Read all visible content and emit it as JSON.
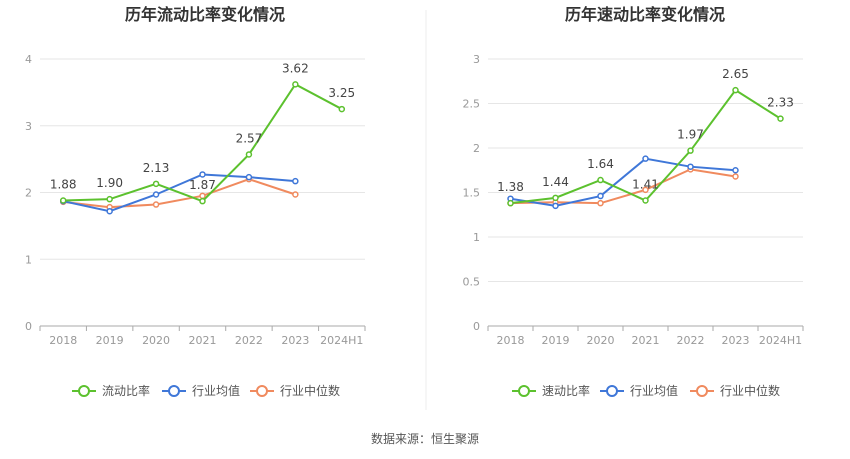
{
  "colors": {
    "series1": "#5cc12e",
    "series2": "#3f77d8",
    "series3": "#f08a5e"
  },
  "source_text": "数据来源：恒生聚源",
  "chart_data": [
    {
      "type": "line",
      "title": "历年流动比率变化情况",
      "categories": [
        "2018",
        "2019",
        "2020",
        "2021",
        "2022",
        "2023",
        "2024H1"
      ],
      "ylim": [
        0,
        4
      ],
      "yticks": [
        "0",
        "1",
        "2",
        "3",
        "4"
      ],
      "ytick_values": [
        0,
        1,
        2,
        3,
        4
      ],
      "grid": true,
      "legend_position": "bottom",
      "series": [
        {
          "name": "流动比率",
          "values": [
            1.88,
            1.9,
            2.13,
            1.87,
            2.57,
            3.62,
            3.25
          ],
          "labels": [
            "1.88",
            "1.90",
            "2.13",
            "1.87",
            "2.57",
            "3.62",
            "3.25"
          ]
        },
        {
          "name": "行业均值",
          "values": [
            1.87,
            1.72,
            1.97,
            2.27,
            2.23,
            2.17,
            null
          ]
        },
        {
          "name": "行业中位数",
          "values": [
            1.86,
            1.78,
            1.82,
            1.95,
            2.2,
            1.97,
            null
          ]
        }
      ]
    },
    {
      "type": "line",
      "title": "历年速动比率变化情况",
      "categories": [
        "2018",
        "2019",
        "2020",
        "2021",
        "2022",
        "2023",
        "2024H1"
      ],
      "ylim": [
        0,
        3
      ],
      "yticks": [
        "0",
        "0.5",
        "1",
        "1.5",
        "2",
        "2.5",
        "3"
      ],
      "ytick_values": [
        0,
        0.5,
        1,
        1.5,
        2,
        2.5,
        3
      ],
      "grid": true,
      "legend_position": "bottom",
      "series": [
        {
          "name": "速动比率",
          "values": [
            1.38,
            1.44,
            1.64,
            1.41,
            1.97,
            2.65,
            2.33
          ],
          "labels": [
            "1.38",
            "1.44",
            "1.64",
            "1.41",
            "1.97",
            "2.65",
            "2.33"
          ]
        },
        {
          "name": "行业均值",
          "values": [
            1.43,
            1.35,
            1.46,
            1.88,
            1.79,
            1.75,
            null
          ]
        },
        {
          "name": "行业中位数",
          "values": [
            1.38,
            1.39,
            1.38,
            1.53,
            1.76,
            1.68,
            null
          ]
        }
      ]
    }
  ]
}
